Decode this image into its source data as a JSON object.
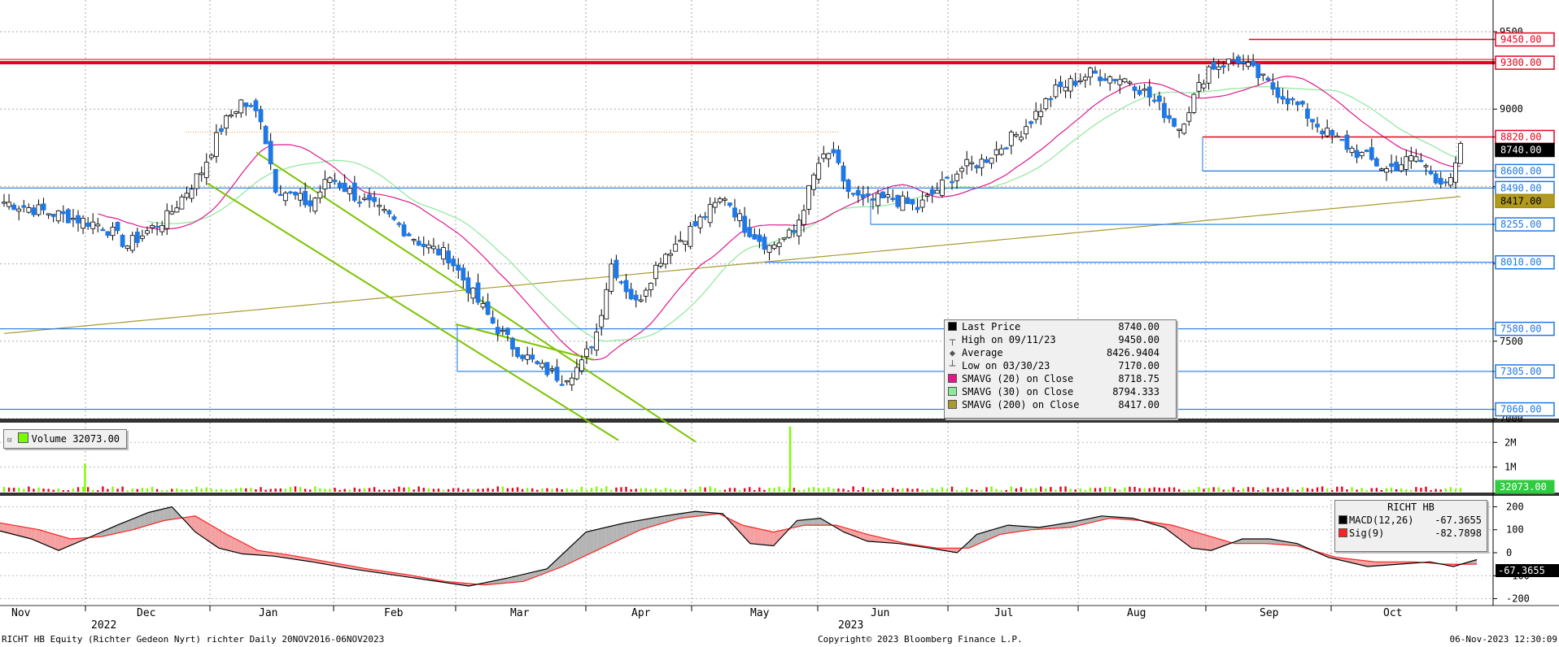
{
  "chart_data": [
    {
      "type": "candlestick",
      "title": "RICHT HB Equity (Richter Gedeon Nyrt) richter",
      "ylim": [
        7000,
        9600
      ],
      "y_ticks": [
        7000,
        7500,
        8000,
        8500,
        9000,
        9500
      ],
      "y_tick_labels": [
        "7000",
        "7500",
        "",
        "",
        "9000",
        "9500"
      ],
      "months": [
        "Nov",
        "Dec",
        "Jan",
        "Feb",
        "Mar",
        "Apr",
        "May",
        "Jun",
        "Jul",
        "Aug",
        "Sep",
        "Oct"
      ],
      "years": [
        "2022",
        "2023"
      ],
      "legend_placement": "center-bottom",
      "grid": true,
      "close_path": [
        [
          0,
          8400
        ],
        [
          20,
          8250
        ],
        [
          25,
          8120
        ],
        [
          33,
          8300
        ],
        [
          40,
          8600
        ],
        [
          44,
          8880
        ],
        [
          48,
          9050
        ],
        [
          52,
          8950
        ],
        [
          55,
          8500
        ],
        [
          62,
          8380
        ],
        [
          66,
          8560
        ],
        [
          72,
          8420
        ],
        [
          78,
          8300
        ],
        [
          85,
          8120
        ],
        [
          90,
          8050
        ],
        [
          95,
          7800
        ],
        [
          99,
          7620
        ],
        [
          103,
          7470
        ],
        [
          108,
          7340
        ],
        [
          113,
          7260
        ],
        [
          117,
          7350
        ],
        [
          120,
          7560
        ],
        [
          123,
          8000
        ],
        [
          128,
          7740
        ],
        [
          133,
          8040
        ],
        [
          140,
          8250
        ],
        [
          146,
          8440
        ],
        [
          150,
          8240
        ],
        [
          155,
          8110
        ],
        [
          160,
          8200
        ],
        [
          165,
          8650
        ],
        [
          168,
          8720
        ],
        [
          170,
          8500
        ],
        [
          174,
          8400
        ],
        [
          180,
          8420
        ],
        [
          185,
          8360
        ],
        [
          189,
          8480
        ],
        [
          194,
          8620
        ],
        [
          198,
          8660
        ],
        [
          206,
          8860
        ],
        [
          213,
          9120
        ],
        [
          220,
          9230
        ],
        [
          228,
          9190
        ],
        [
          232,
          9080
        ],
        [
          238,
          8880
        ],
        [
          244,
          9270
        ],
        [
          250,
          9320
        ],
        [
          256,
          9160
        ],
        [
          262,
          9020
        ],
        [
          268,
          8840
        ],
        [
          274,
          8720
        ],
        [
          280,
          8610
        ],
        [
          286,
          8690
        ],
        [
          290,
          8560
        ],
        [
          293,
          8520
        ],
        [
          295,
          8740
        ]
      ],
      "h_levels": [
        {
          "label": "9450.00",
          "value": 9450,
          "color": "#e8001c"
        },
        {
          "label": "9300.00",
          "value": 9300,
          "color": "#e8001c"
        },
        {
          "label": "8820.00",
          "value": 8820,
          "color": "#e8001c"
        },
        {
          "label": "8740.00",
          "value": 8740,
          "color": "#000000"
        },
        {
          "label": "8600.00",
          "value": 8600,
          "color": "#1e78e6"
        },
        {
          "label": "8490.00",
          "value": 8490,
          "color": "#1e78e6"
        },
        {
          "label": "8417.00",
          "value": 8417,
          "color": "#a89000"
        },
        {
          "label": "8255.00",
          "value": 8255,
          "color": "#1e78e6"
        },
        {
          "label": "8010.00",
          "value": 8010,
          "color": "#1e78e6"
        },
        {
          "label": "7580.00",
          "value": 7580,
          "color": "#1e78e6"
        },
        {
          "label": "7305.00",
          "value": 7305,
          "color": "#1e78e6"
        },
        {
          "label": "7060.00",
          "value": 7060,
          "color": "#1e78e6"
        }
      ],
      "series": [
        {
          "name": "SMAVG (20)  on Close",
          "value": "8718.75",
          "color": "#e0188c"
        },
        {
          "name": "SMAVG (30)  on Close",
          "value": "8794.333",
          "color": "#8ee89a"
        },
        {
          "name": "SMAVG (200)  on Close",
          "value": "8417.00",
          "color": "#a89a30"
        }
      ],
      "legend": [
        {
          "label": "Last Price",
          "value": "8740.00",
          "glyph": "box",
          "color": "#000000"
        },
        {
          "label": "High on 09/11/23",
          "value": "9450.00",
          "glyph": "high"
        },
        {
          "label": "Average",
          "value": "8426.9404",
          "glyph": "avg"
        },
        {
          "label": "Low on 03/30/23",
          "value": "7170.00",
          "glyph": "low"
        },
        {
          "label": "SMAVG (20)  on Close",
          "value": "8718.75",
          "glyph": "box",
          "color": "#e0188c"
        },
        {
          "label": "SMAVG (30)  on Close",
          "value": "8794.333",
          "glyph": "box",
          "color": "#8ee89a"
        },
        {
          "label": "SMAVG (200)  on Close",
          "value": "8417.00",
          "glyph": "box",
          "color": "#a89a30"
        }
      ]
    },
    {
      "type": "bar",
      "name": "Volume",
      "last_value": "32073.00",
      "y_tick_labels": [
        "2M",
        "1M"
      ],
      "y_ticks": [
        2000000,
        1000000
      ],
      "ylim": [
        0,
        2800000
      ],
      "spikes": [
        {
          "day": 21,
          "value": 1150000
        },
        {
          "day": 204,
          "value": 2650000
        }
      ]
    },
    {
      "type": "line",
      "name": "RICHT HB",
      "ylim": [
        -230,
        230
      ],
      "y_ticks": [
        200,
        100,
        0,
        -100,
        -200
      ],
      "y_tick_labels": [
        "200",
        "100",
        "0",
        "-100",
        "-200"
      ],
      "last_label": "-67.3655",
      "macd": [
        [
          0,
          95
        ],
        [
          8,
          60
        ],
        [
          15,
          10
        ],
        [
          22,
          60
        ],
        [
          30,
          120
        ],
        [
          38,
          175
        ],
        [
          44,
          200
        ],
        [
          50,
          90
        ],
        [
          56,
          20
        ],
        [
          62,
          -5
        ],
        [
          70,
          -15
        ],
        [
          80,
          -40
        ],
        [
          90,
          -70
        ],
        [
          100,
          -95
        ],
        [
          110,
          -120
        ],
        [
          120,
          -145
        ],
        [
          130,
          -110
        ],
        [
          140,
          -70
        ],
        [
          150,
          90
        ],
        [
          160,
          130
        ],
        [
          170,
          160
        ],
        [
          178,
          180
        ],
        [
          185,
          170
        ],
        [
          192,
          40
        ],
        [
          198,
          30
        ],
        [
          204,
          140
        ],
        [
          210,
          150
        ],
        [
          216,
          90
        ],
        [
          222,
          50
        ],
        [
          230,
          40
        ],
        [
          238,
          20
        ],
        [
          245,
          0
        ],
        [
          250,
          80
        ],
        [
          258,
          120
        ],
        [
          266,
          110
        ],
        [
          275,
          135
        ],
        [
          282,
          160
        ],
        [
          290,
          150
        ],
        [
          298,
          110
        ],
        [
          305,
          20
        ],
        [
          310,
          10
        ],
        [
          318,
          60
        ],
        [
          325,
          60
        ],
        [
          332,
          40
        ],
        [
          340,
          -20
        ],
        [
          350,
          -60
        ],
        [
          358,
          -50
        ],
        [
          366,
          -40
        ],
        [
          372,
          -60
        ],
        [
          378,
          -30
        ]
      ],
      "signal": [
        [
          0,
          130
        ],
        [
          10,
          100
        ],
        [
          18,
          60
        ],
        [
          26,
          70
        ],
        [
          34,
          100
        ],
        [
          42,
          140
        ],
        [
          50,
          160
        ],
        [
          58,
          80
        ],
        [
          66,
          10
        ],
        [
          74,
          -10
        ],
        [
          84,
          -40
        ],
        [
          94,
          -70
        ],
        [
          104,
          -95
        ],
        [
          114,
          -125
        ],
        [
          124,
          -140
        ],
        [
          134,
          -125
        ],
        [
          144,
          -60
        ],
        [
          154,
          20
        ],
        [
          164,
          100
        ],
        [
          174,
          150
        ],
        [
          184,
          170
        ],
        [
          190,
          120
        ],
        [
          198,
          90
        ],
        [
          206,
          120
        ],
        [
          214,
          120
        ],
        [
          222,
          80
        ],
        [
          232,
          40
        ],
        [
          240,
          20
        ],
        [
          248,
          20
        ],
        [
          256,
          80
        ],
        [
          264,
          100
        ],
        [
          274,
          110
        ],
        [
          284,
          150
        ],
        [
          292,
          140
        ],
        [
          300,
          120
        ],
        [
          308,
          80
        ],
        [
          316,
          40
        ],
        [
          324,
          40
        ],
        [
          332,
          30
        ],
        [
          342,
          -20
        ],
        [
          352,
          -40
        ],
        [
          362,
          -40
        ],
        [
          370,
          -50
        ],
        [
          378,
          -50
        ]
      ],
      "legend": [
        {
          "label": "MACD(12,26)",
          "value": "-67.3655",
          "color": "#000000"
        },
        {
          "label": "Sig(9)",
          "value": "-82.7898",
          "color": "#ff2020"
        }
      ]
    }
  ],
  "footer": {
    "left": "RICHT HB Equity (Richter Gedeon Nyrt) richter  Daily 20NOV2016-06NOV2023",
    "center": "Copyright© 2023 Bloomberg Finance L.P.",
    "right": "06-Nov-2023 12:30:09"
  },
  "panels": {
    "volume_label": "Volume 32073.00",
    "macd_title": "RICHT HB"
  },
  "colors": {
    "bull": "#ffffff",
    "bear": "#1e78e6",
    "wick": "#000000",
    "resistance": "#e8001c",
    "support": "#1e78e6",
    "channel": "#7cc400",
    "volume_up": "#7cfc00",
    "volume_down": "#e8001c",
    "macd_fill": "#f4a0a0",
    "macd_fill_pos": "#b4b4b4"
  }
}
